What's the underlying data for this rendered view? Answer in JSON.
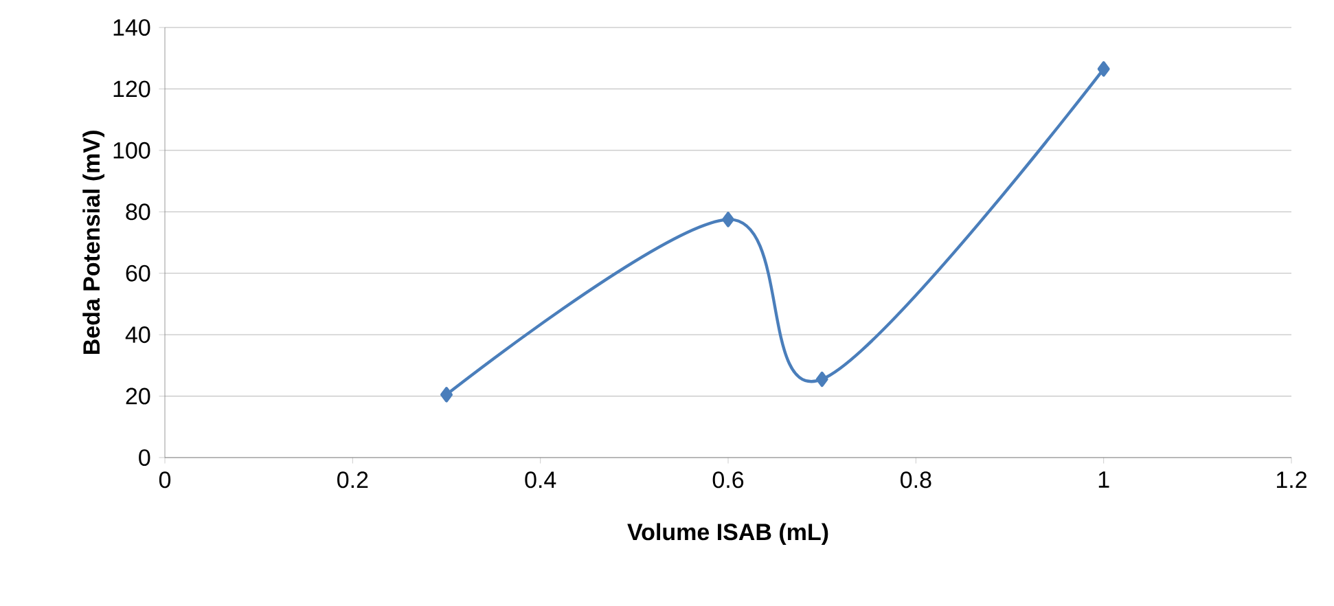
{
  "chart_data": {
    "type": "line",
    "xlabel": "Volume ISAB (mL)",
    "ylabel": "Beda Potensial (mV)",
    "x": [
      0.3,
      0.6,
      0.7,
      1.0
    ],
    "series": [
      {
        "color": "#4a7ebb",
        "values": [
          20.5,
          77.5,
          25.5,
          126.5
        ]
      }
    ],
    "xlim": [
      0,
      1.2
    ],
    "xticks": [
      0,
      0.2,
      0.4,
      0.6,
      0.8,
      1,
      1.2
    ],
    "ylim": [
      0,
      140
    ],
    "yticks": [
      0,
      20,
      40,
      60,
      80,
      100,
      120,
      140
    ],
    "grid": "y",
    "marker": "diamond",
    "line_style": "solid"
  }
}
